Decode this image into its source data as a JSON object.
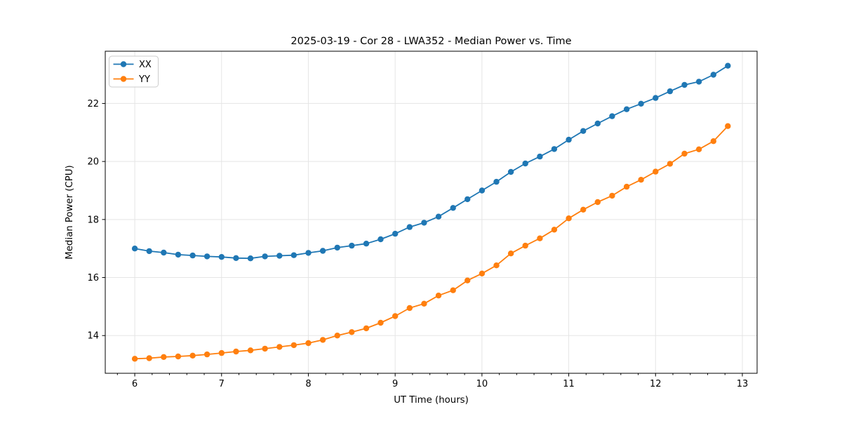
{
  "chart_data": {
    "type": "line",
    "title": "2025-03-19 - Cor 28 - LWA352 - Median Power vs. Time",
    "xlabel": "UT Time (hours)",
    "ylabel": "Median Power (CPU)",
    "xlim": [
      5.66,
      13.17
    ],
    "ylim": [
      12.7,
      23.8
    ],
    "x_ticks": [
      6,
      7,
      8,
      9,
      10,
      11,
      12,
      13
    ],
    "y_ticks": [
      14,
      16,
      18,
      20,
      22
    ],
    "x_minor_tick_step": 0.2,
    "grid": true,
    "legend_position": "upper-left",
    "x": [
      6.0,
      6.167,
      6.333,
      6.5,
      6.667,
      6.833,
      7.0,
      7.167,
      7.333,
      7.5,
      7.667,
      7.833,
      8.0,
      8.167,
      8.333,
      8.5,
      8.667,
      8.833,
      9.0,
      9.167,
      9.333,
      9.5,
      9.667,
      9.833,
      10.0,
      10.167,
      10.333,
      10.5,
      10.667,
      10.833,
      11.0,
      11.167,
      11.333,
      11.5,
      11.667,
      11.833,
      12.0,
      12.167,
      12.333,
      12.5,
      12.667,
      12.833
    ],
    "series": [
      {
        "name": "XX",
        "color": "#1f77b4",
        "marker": "circle",
        "values": [
          17.0,
          16.91,
          16.86,
          16.79,
          16.76,
          16.73,
          16.71,
          16.67,
          16.66,
          16.73,
          16.75,
          16.77,
          16.85,
          16.92,
          17.03,
          17.1,
          17.17,
          17.32,
          17.51,
          17.74,
          17.89,
          18.1,
          18.4,
          18.7,
          19.0,
          19.3,
          19.64,
          19.93,
          20.17,
          20.43,
          20.75,
          21.05,
          21.31,
          21.56,
          21.8,
          21.99,
          22.19,
          22.42,
          22.64,
          22.75,
          22.99,
          23.3
        ]
      },
      {
        "name": "YY",
        "color": "#ff7f0e",
        "marker": "circle",
        "values": [
          13.2,
          13.22,
          13.26,
          13.28,
          13.31,
          13.35,
          13.4,
          13.45,
          13.49,
          13.55,
          13.61,
          13.67,
          13.74,
          13.85,
          14.0,
          14.12,
          14.25,
          14.44,
          14.67,
          14.95,
          15.1,
          15.38,
          15.56,
          15.9,
          16.14,
          16.42,
          16.83,
          17.1,
          17.35,
          17.65,
          18.04,
          18.34,
          18.6,
          18.82,
          19.13,
          19.37,
          19.65,
          19.92,
          20.27,
          20.42,
          20.7,
          21.22
        ]
      }
    ]
  }
}
